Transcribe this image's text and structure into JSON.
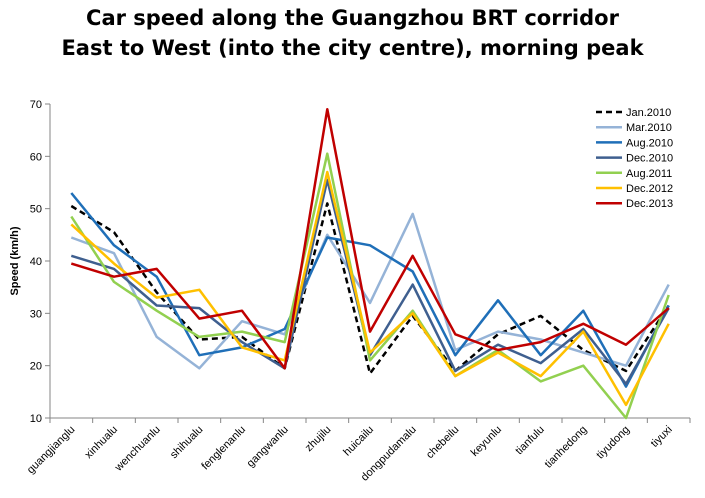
{
  "chart_data": {
    "type": "line",
    "title_line1": "Car speed along the Guangzhou BRT corridor",
    "title_line2": "East to West (into the city centre), morning peak",
    "xlabel": "",
    "ylabel": "Speed (km/h)",
    "ylim": [
      10,
      70
    ],
    "yticks": [
      10,
      20,
      30,
      40,
      50,
      60,
      70
    ],
    "grid": false,
    "legend_position": "top-right",
    "categories": [
      "guangjianglu",
      "xinhualu",
      "wenchuanlu",
      "shihualu",
      "fenglenanlu",
      "gangwanlu",
      "zhujilu",
      "huicailu",
      "dongpudamalu",
      "chebeilu",
      "keyunlu",
      "tianfulu",
      "tianhedong",
      "tiyudong",
      "tiyuxi"
    ],
    "series": [
      {
        "name": "Jan.2010",
        "color": "#000000",
        "dashed": true,
        "values": [
          50.5,
          45.5,
          34,
          25,
          25.5,
          19.5,
          51,
          18.5,
          29.5,
          19,
          26,
          29.5,
          23,
          19,
          31.5
        ]
      },
      {
        "name": "Mar.2010",
        "color": "#95B3D7",
        "dashed": false,
        "values": [
          44.5,
          41.5,
          25.5,
          19.5,
          28.5,
          26,
          45,
          32,
          49,
          23,
          26.5,
          25,
          22.5,
          20,
          35.5
        ]
      },
      {
        "name": "Aug.2010",
        "color": "#1F6FB8",
        "dashed": false,
        "values": [
          53,
          43,
          37,
          22,
          23.5,
          27,
          44.5,
          43,
          38,
          22,
          32.5,
          22,
          30.5,
          16,
          31.5
        ]
      },
      {
        "name": "Dec.2010",
        "color": "#3F5F8F",
        "dashed": false,
        "values": [
          41,
          38.5,
          31.5,
          31,
          24.5,
          19.5,
          55.5,
          22,
          35.5,
          19,
          24,
          20.5,
          27,
          16.5,
          31
        ]
      },
      {
        "name": "Aug.2011",
        "color": "#92D050",
        "dashed": false,
        "values": [
          48.5,
          36,
          30.5,
          25.5,
          26.5,
          24.5,
          60.5,
          21,
          30.5,
          18,
          23,
          17,
          20,
          10,
          33.5
        ]
      },
      {
        "name": "Dec.2012",
        "color": "#FFC000",
        "dashed": false,
        "values": [
          47,
          39.5,
          33,
          34.5,
          23.5,
          21,
          57,
          22.5,
          30,
          18,
          22.5,
          18,
          26.5,
          12.5,
          28
        ]
      },
      {
        "name": "Dec.2013",
        "color": "#C00000",
        "dashed": false,
        "values": [
          39.5,
          37,
          38.5,
          29,
          30.5,
          19.5,
          69,
          26.5,
          41,
          26,
          23,
          24.5,
          28,
          24,
          31
        ]
      }
    ]
  }
}
